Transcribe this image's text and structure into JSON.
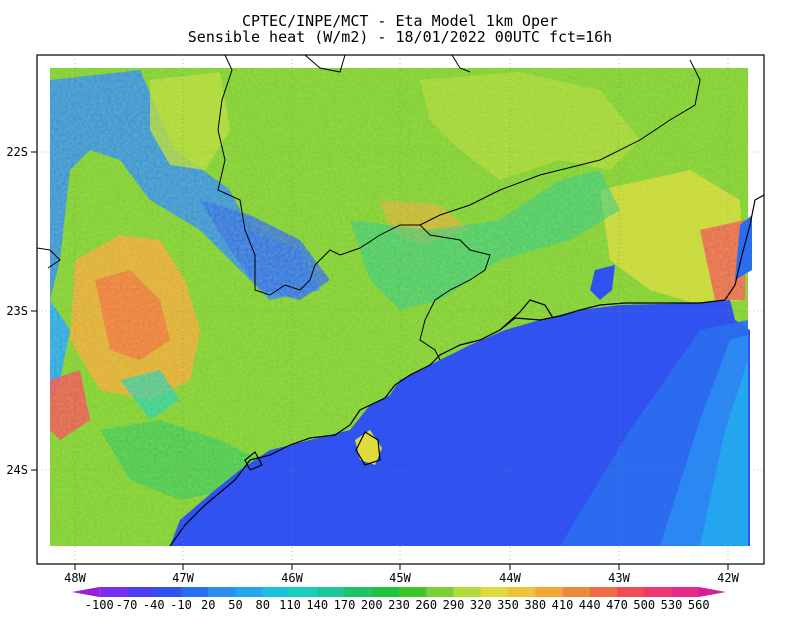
{
  "title_line1": "CPTEC/INPE/MCT -  Eta Model 1km Oper",
  "title_line2": "Sensible heat (W/m2) - 18/01/2022 00UTC fct=16h",
  "axes": {
    "x_ticks": [
      "48W",
      "47W",
      "46W",
      "45W",
      "44W",
      "43W",
      "42W"
    ],
    "y_ticks": [
      "22S",
      "23S",
      "24S"
    ]
  },
  "colorbar": {
    "labels": [
      "-100",
      "-70",
      "-40",
      "-10",
      "20",
      "50",
      "80",
      "110",
      "140",
      "170",
      "200",
      "230",
      "260",
      "290",
      "320",
      "350",
      "380",
      "410",
      "440",
      "470",
      "500",
      "530",
      "560"
    ],
    "colors": [
      "#9a1fd6",
      "#7a2ff0",
      "#4b3df5",
      "#2f52f0",
      "#2a6ef0",
      "#2b8cf2",
      "#22a8ee",
      "#1cc2e0",
      "#18cfbe",
      "#1cc896",
      "#20c468",
      "#22c23c",
      "#40c62c",
      "#7ad034",
      "#b4dc3a",
      "#dedc3a",
      "#f0c438",
      "#f0a838",
      "#f08a3a",
      "#f06a42",
      "#f04c58",
      "#f0386e",
      "#e62a86",
      "#d81e96"
    ]
  },
  "map_colors": {
    "ocean_deep": "#2f52f0",
    "ocean_near": "#2a6ef0",
    "land_base": "#7ad034"
  }
}
